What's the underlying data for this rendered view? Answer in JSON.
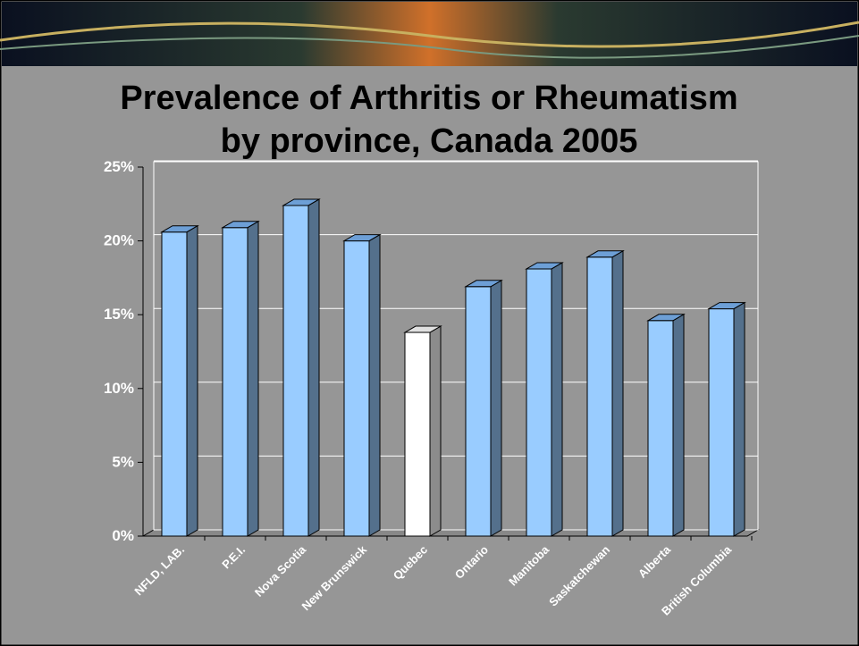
{
  "chart_data": {
    "type": "bar3d",
    "title": [
      "Prevalence of Arthritis or Rheumatism",
      "by province, Canada 2005"
    ],
    "categories": [
      "NFLD, LAB.",
      "P.E.I.",
      "Nova Scotia",
      "New Brunswick",
      "Quebec",
      "Ontario",
      "Manitoba",
      "Saskatchewan",
      "Alberta",
      "British Columbia"
    ],
    "values": [
      20.6,
      20.9,
      22.4,
      20.0,
      13.8,
      16.9,
      18.1,
      18.9,
      14.6,
      15.4
    ],
    "colors": [
      "#99ccff",
      "#99ccff",
      "#99ccff",
      "#99ccff",
      "#ffffff",
      "#99ccff",
      "#99ccff",
      "#99ccff",
      "#99ccff",
      "#99ccff"
    ],
    "ylim": [
      0,
      25
    ],
    "yticks": [
      {
        "value": 0,
        "label": "0%"
      },
      {
        "value": 5,
        "label": "5%"
      },
      {
        "value": 10,
        "label": "10%"
      },
      {
        "value": 15,
        "label": "15%"
      },
      {
        "value": 20,
        "label": "20%"
      },
      {
        "value": 25,
        "label": "25%"
      }
    ],
    "grid": true
  }
}
